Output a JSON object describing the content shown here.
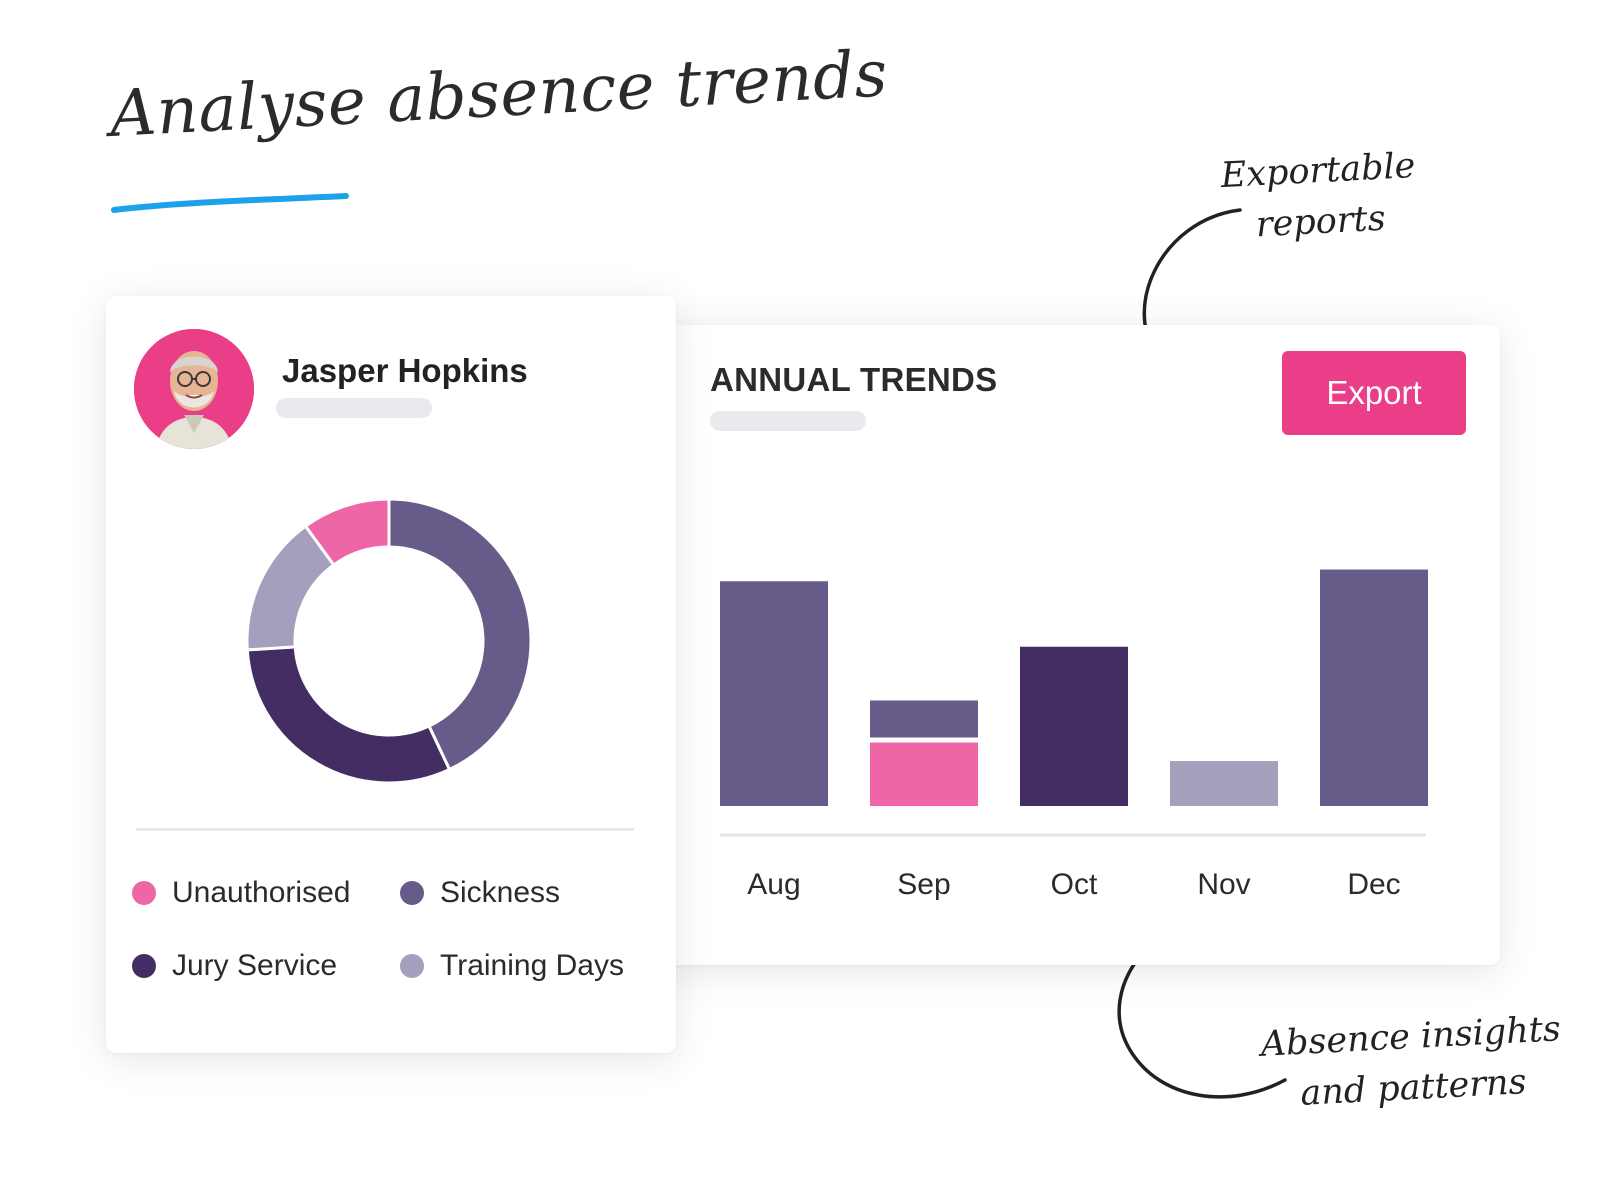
{
  "headline": "Analyse absence trends",
  "employee": {
    "name": "Jasper Hopkins"
  },
  "donut": {
    "segments": [
      {
        "category": "Sickness",
        "value": 43,
        "color": "#675b8a"
      },
      {
        "category": "Jury Service",
        "value": 31,
        "color": "#442d62"
      },
      {
        "category": "Training Days",
        "value": 16,
        "color": "#a49fbd"
      },
      {
        "category": "Unauthorised",
        "value": 10,
        "color": "#ef66a7"
      }
    ]
  },
  "legend": [
    {
      "label": "Unauthorised",
      "color": "#ef66a7"
    },
    {
      "label": "Sickness",
      "color": "#675b8a"
    },
    {
      "label": "Jury Service",
      "color": "#442d62"
    },
    {
      "label": "Training Days",
      "color": "#a49fbd"
    }
  ],
  "trends": {
    "title": "ANNUAL TRENDS",
    "export_label": "Export"
  },
  "chart_data": {
    "type": "bar",
    "stacked": true,
    "categories": [
      "Aug",
      "Sep",
      "Oct",
      "Nov",
      "Dec"
    ],
    "series": [
      {
        "name": "Unauthorised",
        "color": "#ef66a7",
        "values": [
          0,
          6.5,
          0,
          0,
          0
        ]
      },
      {
        "name": "Sickness",
        "color": "#675b8a",
        "values": [
          23,
          4.3,
          0,
          0,
          24.2
        ]
      },
      {
        "name": "Jury Service",
        "color": "#442d62",
        "values": [
          0,
          0,
          16.3,
          0,
          0
        ]
      },
      {
        "name": "Training Days",
        "color": "#a49fbd",
        "values": [
          0,
          0,
          0,
          4.6,
          0
        ]
      }
    ],
    "ylim": [
      0,
      35
    ],
    "grid": false,
    "legend": "none"
  },
  "notes": {
    "exportable": [
      "Exportable",
      "reports"
    ],
    "insights": [
      "Absence insights",
      "and patterns"
    ]
  },
  "colors": {
    "accent": "#ea3e89",
    "underline": "#1aa3e8",
    "text": "#2b2b2b"
  }
}
